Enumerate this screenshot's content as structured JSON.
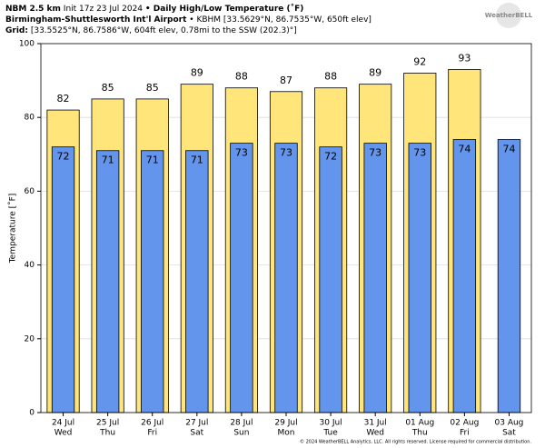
{
  "header": {
    "line1": [
      "NBM 2.5 km",
      "Init 17z 23 Jul 2024",
      "• Daily High/Low Temperature (˚F)"
    ],
    "line2": [
      "Birmingham-Shuttlesworth Int'l Airport",
      "• KBHM [33.5629°N, 86.7535°W, 650ft elev]"
    ],
    "line3": [
      "Grid:",
      "[33.5525°N, 86.7586°W, 604ft elev, 0.78mi to the SSW (202.3)°]"
    ],
    "logo": "WeatherBELL",
    "footer": "© 2024 WeatherBELL Analytics, LLC. All rights reserved. License required for commercial distribution."
  },
  "chart_data": {
    "type": "bar",
    "y_label": "Temperature [˚F]",
    "categories": [
      "24 Jul",
      "25 Jul",
      "26 Jul",
      "27 Jul",
      "28 Jul",
      "29 Jul",
      "30 Jul",
      "31 Jul",
      "01 Aug",
      "02 Aug",
      "03 Aug"
    ],
    "weekdays": [
      "Wed",
      "Thu",
      "Fri",
      "Sat",
      "Sun",
      "Mon",
      "Tue",
      "Wed",
      "Thu",
      "Fri",
      "Sat"
    ],
    "series": [
      {
        "name": "High",
        "color": "#ffe57a",
        "values": [
          82,
          85,
          85,
          89,
          88,
          87,
          88,
          89,
          92,
          93,
          null
        ]
      },
      {
        "name": "Low",
        "color": "#6495ed",
        "values": [
          72,
          71,
          71,
          71,
          73,
          73,
          72,
          73,
          73,
          74,
          74
        ]
      }
    ],
    "ylim": [
      0,
      100
    ],
    "yticks": [
      0,
      20,
      40,
      60,
      80,
      100
    ],
    "grid": true
  }
}
